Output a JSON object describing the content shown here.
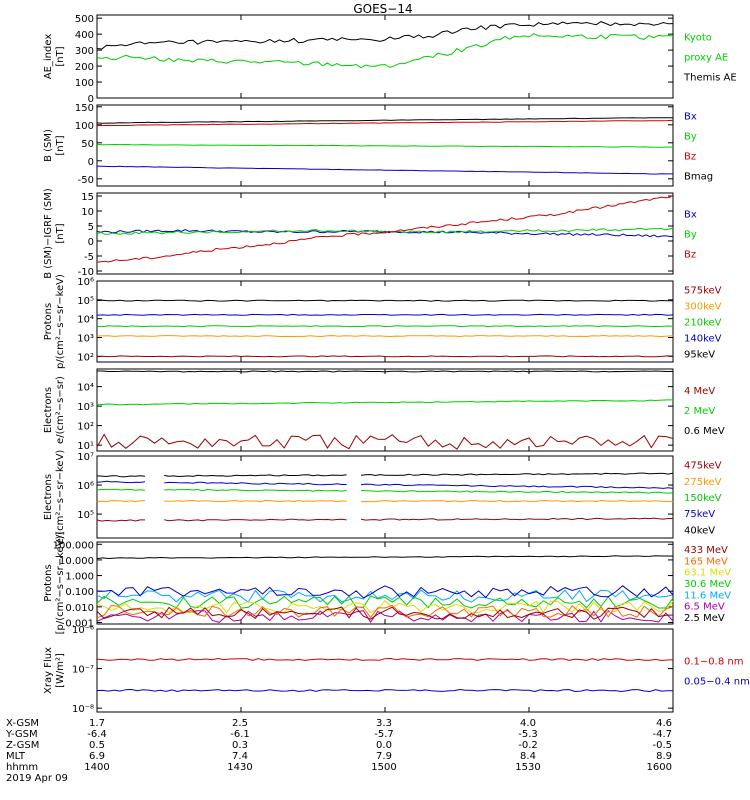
{
  "title": "GOES−14",
  "footer": {
    "rows": [
      {
        "label": "X-GSM",
        "values": [
          "1.7",
          "2.5",
          "3.3",
          "4.0",
          "4.6"
        ]
      },
      {
        "label": "Y-GSM",
        "values": [
          "-6.4",
          "-6.1",
          "-5.7",
          "-5.3",
          "-4.7"
        ]
      },
      {
        "label": "Z-GSM",
        "values": [
          "0.5",
          "0.3",
          "0.0",
          "-0.2",
          "-0.5"
        ]
      },
      {
        "label": "MLT",
        "values": [
          "6.9",
          "7.4",
          "7.9",
          "8.4",
          "8.9"
        ]
      },
      {
        "label": "hhmm",
        "values": [
          "1400",
          "1430",
          "1500",
          "1530",
          "1600"
        ]
      }
    ],
    "date": "2019 Apr 09"
  },
  "colors": {
    "black": "#000000",
    "red": "#cc0000",
    "green": "#00cc00",
    "blue": "#0000cc",
    "orange": "#ff9900",
    "cyan": "#00aaff",
    "yellow": "#dddd00",
    "darkred": "#990000",
    "purple": "#aa00aa"
  },
  "chart_data": [
    {
      "type": "line",
      "ylabel": [
        "AE_index",
        "[nT]"
      ],
      "ylim": [
        0,
        520
      ],
      "scale": "linear",
      "yticks": [
        "0",
        "100",
        "200",
        "300",
        "400",
        "500"
      ],
      "yticks_values": [
        0,
        100,
        200,
        300,
        400,
        500
      ],
      "x_hhmm": [
        "1400",
        "1430",
        "1500",
        "1530",
        "1600"
      ],
      "series": [
        {
          "name": "Kyoto proxy AE",
          "color": "#00cc00",
          "shape": "ae_green",
          "x": [
            1400,
            1415,
            1430,
            1445,
            1500,
            1515,
            1530,
            1545,
            1600
          ],
          "values": [
            250,
            260,
            230,
            230,
            200,
            250,
            320,
            390,
            380
          ]
        },
        {
          "name": "Themis AE",
          "color": "#000000",
          "shape": "ae_black",
          "x": [
            1400,
            1415,
            1430,
            1445,
            1500,
            1515,
            1530,
            1545,
            1600
          ],
          "values": [
            310,
            340,
            350,
            350,
            370,
            390,
            430,
            460,
            470
          ]
        }
      ],
      "legend": [
        {
          "text": "Kyoto",
          "color": "#00cc00"
        },
        {
          "text": "proxy AE",
          "color": "#00cc00"
        },
        {
          "text": "Themis AE",
          "color": "#000000"
        }
      ]
    },
    {
      "type": "line",
      "ylabel": [
        "B (SM)",
        "[nT]"
      ],
      "ylim": [
        -70,
        155
      ],
      "scale": "linear",
      "yticks": [
        "-50",
        "0",
        "50",
        "100",
        "150"
      ],
      "yticks_values": [
        -50,
        0,
        50,
        100,
        150
      ],
      "series": [
        {
          "name": "Bx",
          "color": "#0000cc",
          "shape": "linear",
          "values": [
            -15,
            -37
          ]
        },
        {
          "name": "By",
          "color": "#00cc00",
          "shape": "linear",
          "values": [
            45,
            38
          ]
        },
        {
          "name": "Bz",
          "color": "#cc0000",
          "shape": "linear",
          "values": [
            98,
            112
          ]
        },
        {
          "name": "Bmag",
          "color": "#000000",
          "shape": "linear",
          "values": [
            105,
            120
          ]
        }
      ],
      "legend": [
        {
          "text": "Bx",
          "color": "#0000cc"
        },
        {
          "text": "By",
          "color": "#00cc00"
        },
        {
          "text": "Bz",
          "color": "#cc0000"
        },
        {
          "text": "Bmag",
          "color": "#000000"
        }
      ]
    },
    {
      "type": "line",
      "ylabel": [
        "B (SM)−IGRF (SM)",
        "[nT]"
      ],
      "ylim": [
        -11,
        16
      ],
      "scale": "linear",
      "yticks": [
        "-10",
        "-5",
        "0",
        "5",
        "10",
        "15"
      ],
      "yticks_values": [
        -10,
        -5,
        0,
        5,
        10,
        15
      ],
      "series": [
        {
          "name": "Bx",
          "color": "#0000cc",
          "shape": "bx_igrf",
          "values": [
            3,
            2
          ]
        },
        {
          "name": "By",
          "color": "#00cc00",
          "shape": "by_igrf",
          "values": [
            2.5,
            4
          ]
        },
        {
          "name": "Bz",
          "color": "#cc0000",
          "shape": "bz_igrf",
          "values": [
            -7,
            15
          ]
        }
      ],
      "legend": [
        {
          "text": "Bx",
          "color": "#0000cc"
        },
        {
          "text": "By",
          "color": "#00cc00"
        },
        {
          "text": "Bz",
          "color": "#cc0000"
        }
      ]
    },
    {
      "type": "line",
      "ylabel": [
        "Protons",
        "p/(cm²−s−sr−keV)"
      ],
      "ylim": [
        50,
        1000000
      ],
      "scale": "log",
      "yticks": [
        "10²",
        "10³",
        "10⁴",
        "10⁵",
        "10⁶"
      ],
      "yticks_values": [
        100,
        1000,
        10000,
        100000,
        1000000
      ],
      "series": [
        {
          "name": "95keV",
          "color": "#000000",
          "shape": "flat",
          "values": [
            90000
          ]
        },
        {
          "name": "140keV",
          "color": "#0000cc",
          "shape": "flat",
          "values": [
            16000
          ]
        },
        {
          "name": "210keV",
          "color": "#00cc00",
          "shape": "flat",
          "values": [
            4000
          ]
        },
        {
          "name": "300keV",
          "color": "#ff9900",
          "shape": "flat",
          "values": [
            1200
          ]
        },
        {
          "name": "575keV",
          "color": "#990000",
          "shape": "flat",
          "values": [
            100
          ]
        }
      ],
      "legend": [
        {
          "text": "575keV",
          "color": "#990000"
        },
        {
          "text": "300keV",
          "color": "#ff9900"
        },
        {
          "text": "210keV",
          "color": "#00cc00"
        },
        {
          "text": "140keV",
          "color": "#0000cc"
        },
        {
          "text": "95keV",
          "color": "#000000"
        }
      ]
    },
    {
      "type": "line",
      "ylabel": [
        "Electrons",
        "e/(cm²−s−sr)"
      ],
      "ylim": [
        5,
        80000
      ],
      "scale": "log",
      "yticks": [
        "10¹",
        "10²",
        "10³",
        "10⁴"
      ],
      "yticks_values": [
        10,
        100,
        1000,
        10000
      ],
      "series": [
        {
          "name": "0.6 MeV",
          "color": "#000000",
          "shape": "flat",
          "values": [
            60000
          ]
        },
        {
          "name": "2 MeV",
          "color": "#00cc00",
          "shape": "rise",
          "values": [
            1200,
            2000
          ]
        },
        {
          "name": "4 MeV",
          "color": "#990000",
          "shape": "noisy",
          "values": [
            15
          ]
        }
      ],
      "legend": [
        {
          "text": "4 MeV",
          "color": "#990000"
        },
        {
          "text": "2 MeV",
          "color": "#00cc00"
        },
        {
          "text": "0.6 MeV",
          "color": "#000000"
        }
      ]
    },
    {
      "type": "line",
      "ylabel": [
        "Electrons",
        "e/(cm²−s−sr−keV)"
      ],
      "ylim": [
        15000,
        10000000
      ],
      "scale": "log",
      "yticks": [
        "10⁵",
        "10⁶",
        "10⁷"
      ],
      "yticks_values": [
        100000,
        1000000,
        10000000
      ],
      "series": [
        {
          "name": "40keV",
          "color": "#000000",
          "shape": "gap",
          "values": [
            2000000,
            2500000
          ]
        },
        {
          "name": "75keV",
          "color": "#0000cc",
          "shape": "gap",
          "values": [
            1300000,
            800000
          ]
        },
        {
          "name": "150keV",
          "color": "#00cc00",
          "shape": "gap",
          "values": [
            700000,
            550000
          ]
        },
        {
          "name": "275keV",
          "color": "#ff9900",
          "shape": "gap",
          "values": [
            280000,
            280000
          ]
        },
        {
          "name": "475keV",
          "color": "#990000",
          "shape": "gap",
          "values": [
            60000,
            70000
          ]
        }
      ],
      "legend": [
        {
          "text": "475keV",
          "color": "#990000"
        },
        {
          "text": "275keV",
          "color": "#ff9900"
        },
        {
          "text": "150keV",
          "color": "#00cc00"
        },
        {
          "text": "75keV",
          "color": "#0000cc"
        },
        {
          "text": "40keV",
          "color": "#000000"
        }
      ]
    },
    {
      "type": "line",
      "ylabel": [
        "Protons",
        "[p/(cm²−s−sr−keV)]"
      ],
      "ylim": [
        0.0008,
        140
      ],
      "scale": "log",
      "yticks": [
        "0.001",
        "0.010",
        "0.100",
        "1.000",
        "10.000",
        "100.000"
      ],
      "yticks_values": [
        0.001,
        0.01,
        0.1,
        1,
        10,
        100
      ],
      "series": [
        {
          "name": "2.5 MeV",
          "color": "#000000",
          "shape": "rise",
          "values": [
            13,
            18
          ]
        },
        {
          "name": "6.5 MeV",
          "color": "#aa00aa",
          "shape": "noisy",
          "values": [
            0.0025
          ]
        },
        {
          "name": "11.6 MeV",
          "color": "#00aaff",
          "shape": "noisy",
          "values": [
            0.05
          ]
        },
        {
          "name": "30.6 MeV",
          "color": "#00cc00",
          "shape": "noisy",
          "values": [
            0.02
          ]
        },
        {
          "name": "63.1 MeV",
          "color": "#dddd00",
          "shape": "noisy",
          "values": [
            0.01
          ]
        },
        {
          "name": "165 MeV",
          "color": "#ff6600",
          "shape": "noisy",
          "values": [
            0.005
          ]
        },
        {
          "name": "433 MeV",
          "color": "#990000",
          "shape": "noisy",
          "values": [
            0.004
          ]
        },
        {
          "name": "",
          "color": "#0000cc",
          "shape": "noisy",
          "values": [
            0.09
          ]
        }
      ],
      "legend": [
        {
          "text": "433 MeV",
          "color": "#990000"
        },
        {
          "text": "165 MeV",
          "color": "#ff6600"
        },
        {
          "text": "63.1 MeV",
          "color": "#dddd00"
        },
        {
          "text": "30.6 MeV",
          "color": "#00cc00"
        },
        {
          "text": "11.6 MeV",
          "color": "#00aaff"
        },
        {
          "text": "6.5 MeV",
          "color": "#aa00aa"
        },
        {
          "text": "2.5 MeV",
          "color": "#000000"
        }
      ]
    },
    {
      "type": "line",
      "ylabel": [
        "Xray Flux",
        "[W/m²]"
      ],
      "ylim": [
        8e-09,
        1e-06
      ],
      "scale": "log",
      "yticks": [
        "10⁻⁸",
        "10⁻⁷",
        "10⁻⁶"
      ],
      "yticks_values": [
        1e-08,
        1e-07,
        1e-06
      ],
      "series": [
        {
          "name": "0.1−0.8 nm",
          "color": "#cc0000",
          "shape": "flat",
          "values": [
            1.7e-07
          ]
        },
        {
          "name": "0.05−0.4 nm",
          "color": "#0000cc",
          "shape": "flat",
          "values": [
            2.8e-08
          ]
        }
      ],
      "legend": [
        {
          "text": "0.1−0.8 nm",
          "color": "#cc0000"
        },
        {
          "text": "0.05−0.4 nm",
          "color": "#0000cc"
        }
      ]
    }
  ]
}
